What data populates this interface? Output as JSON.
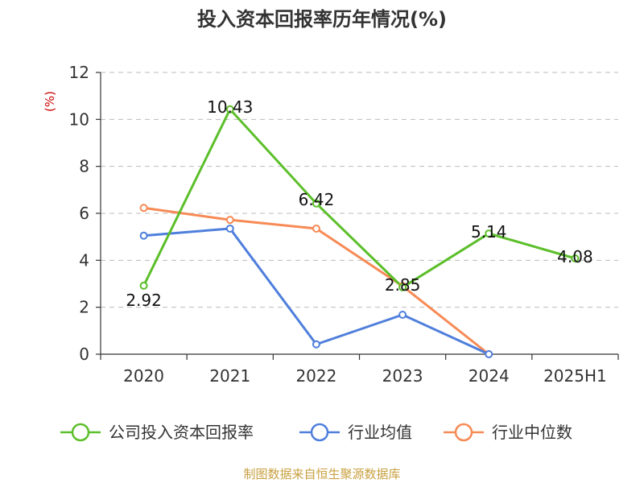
{
  "chart_data": {
    "type": "line",
    "title": "投入资本回报率历年情况(%)",
    "ylabel": "(%)",
    "xlabel": "",
    "categories": [
      "2020",
      "2021",
      "2022",
      "2023",
      "2024",
      "2025H1"
    ],
    "ylim": [
      0,
      12
    ],
    "yticks": [
      0,
      2,
      4,
      6,
      8,
      10,
      12
    ],
    "grid": true,
    "legend_position": "bottom",
    "series": [
      {
        "name": "公司投入资本回报率",
        "color": "#5cbf2a",
        "values": [
          2.92,
          10.43,
          6.42,
          2.85,
          5.14,
          4.08
        ],
        "labels": [
          "2.92",
          "10.43",
          "6.42",
          "2.85",
          "5.14",
          "4.08"
        ]
      },
      {
        "name": "行业均值",
        "color": "#4f7fdc",
        "values": [
          5.05,
          5.35,
          0.42,
          1.68,
          0.0,
          null
        ]
      },
      {
        "name": "行业中位数",
        "color": "#f78a55",
        "values": [
          6.23,
          5.72,
          5.35,
          2.9,
          0.0,
          null
        ]
      }
    ],
    "source": "制图数据来自恒生聚源数据库"
  }
}
